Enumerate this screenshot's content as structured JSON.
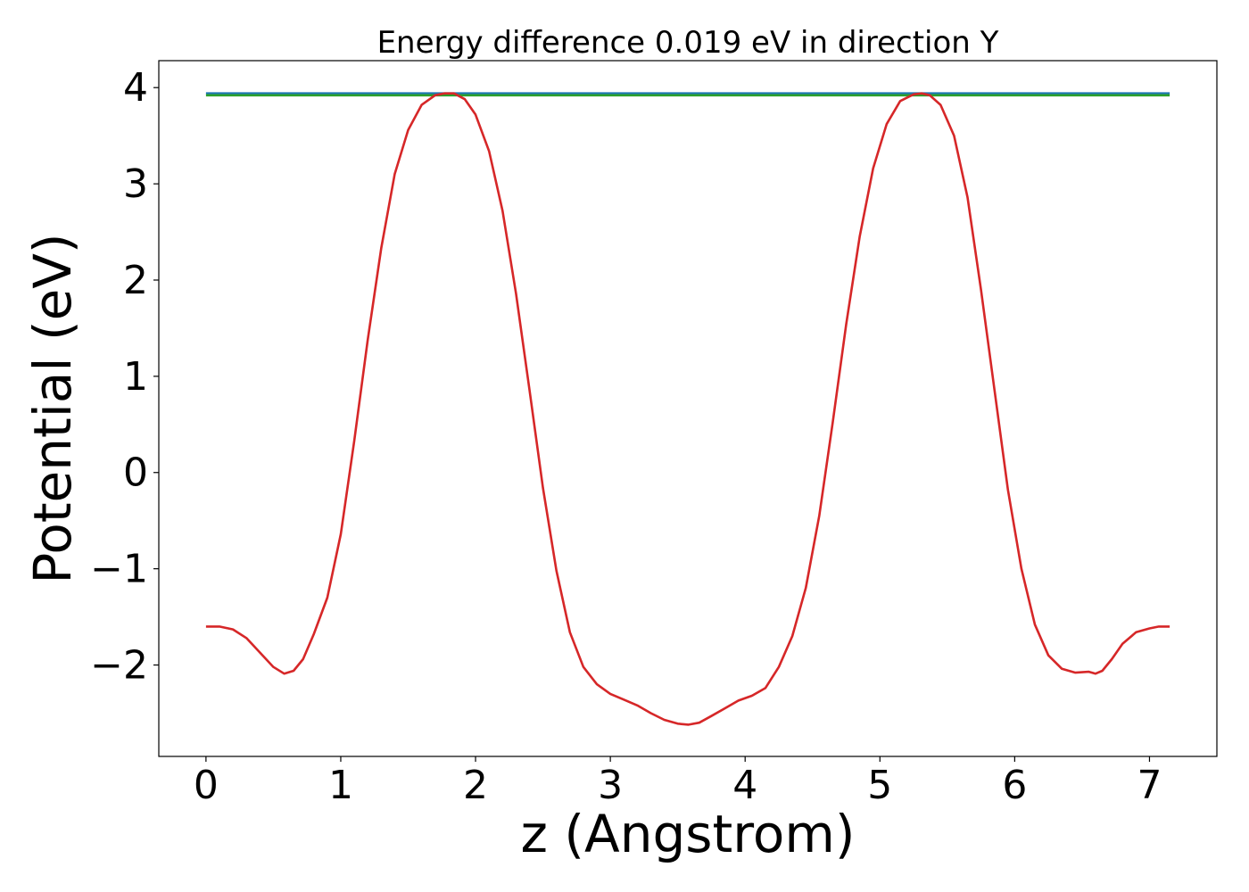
{
  "chart_data": {
    "type": "line",
    "title": "Energy difference 0.019 eV in direction Y",
    "xlabel": "z (Angstrom)",
    "ylabel": "Potential (eV)",
    "xlim": [
      -0.35,
      7.5
    ],
    "ylim": [
      -2.95,
      4.28
    ],
    "xticks": [
      0,
      1,
      2,
      3,
      4,
      5,
      6,
      7
    ],
    "yticks": [
      4,
      3,
      2,
      1,
      0,
      -1,
      -2
    ],
    "xtick_labels": [
      "0",
      "1",
      "2",
      "3",
      "4",
      "5",
      "6",
      "7"
    ],
    "ytick_labels": [
      "4",
      "3",
      "2",
      "1",
      "0",
      "−1",
      "−2"
    ],
    "grid": false,
    "legend": "none",
    "series": [
      {
        "color": "#1f77b4",
        "x": [
          0,
          7.15
        ],
        "y": [
          3.94,
          3.94
        ]
      },
      {
        "color": "#2ca02c",
        "x": [
          0,
          7.15
        ],
        "y": [
          3.92,
          3.92
        ]
      },
      {
        "color": "#d62728",
        "x": [
          0,
          0.1,
          0.2,
          0.3,
          0.4,
          0.5,
          0.58,
          0.65,
          0.72,
          0.8,
          0.9,
          1.0,
          1.1,
          1.2,
          1.3,
          1.4,
          1.5,
          1.6,
          1.7,
          1.77,
          1.84,
          1.92,
          2.0,
          2.1,
          2.2,
          2.3,
          2.4,
          2.5,
          2.6,
          2.7,
          2.8,
          2.9,
          3.0,
          3.1,
          3.2,
          3.3,
          3.4,
          3.5,
          3.58,
          3.66,
          3.75,
          3.85,
          3.95,
          4.05,
          4.15,
          4.25,
          4.35,
          4.45,
          4.55,
          4.65,
          4.75,
          4.85,
          4.95,
          5.05,
          5.15,
          5.25,
          5.31,
          5.37,
          5.45,
          5.55,
          5.65,
          5.75,
          5.85,
          5.95,
          6.05,
          6.15,
          6.25,
          6.35,
          6.45,
          6.55,
          6.6,
          6.65,
          6.72,
          6.8,
          6.9,
          7.0,
          7.07,
          7.15
        ],
        "y": [
          -1.6,
          -1.6,
          -1.63,
          -1.72,
          -1.87,
          -2.02,
          -2.09,
          -2.06,
          -1.94,
          -1.68,
          -1.3,
          -0.64,
          0.33,
          1.38,
          2.33,
          3.1,
          3.56,
          3.82,
          3.92,
          3.94,
          3.94,
          3.88,
          3.72,
          3.34,
          2.72,
          1.86,
          0.86,
          -0.16,
          -1.02,
          -1.66,
          -2.02,
          -2.2,
          -2.3,
          -2.36,
          -2.42,
          -2.5,
          -2.57,
          -2.61,
          -2.62,
          -2.6,
          -2.53,
          -2.45,
          -2.37,
          -2.32,
          -2.24,
          -2.02,
          -1.7,
          -1.2,
          -0.45,
          0.52,
          1.54,
          2.45,
          3.16,
          3.62,
          3.86,
          3.93,
          3.94,
          3.92,
          3.82,
          3.5,
          2.86,
          1.9,
          0.86,
          -0.18,
          -1.0,
          -1.58,
          -1.9,
          -2.04,
          -2.08,
          -2.07,
          -2.09,
          -2.06,
          -1.94,
          -1.78,
          -1.66,
          -1.62,
          -1.6,
          -1.6
        ]
      }
    ]
  }
}
